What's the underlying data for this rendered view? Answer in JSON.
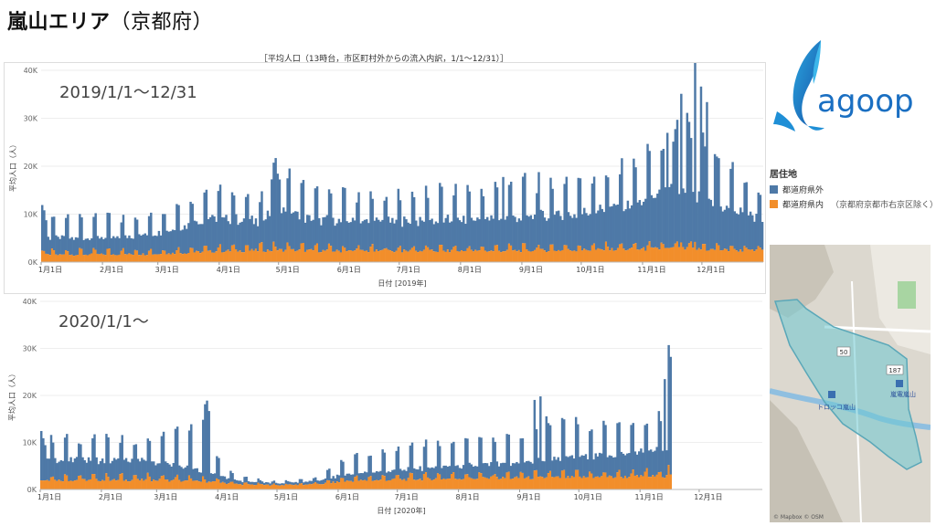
{
  "header": {
    "title": "嵐山エリア",
    "subtitle": "（京都府）"
  },
  "caption": "［平均人口（13時台，市区町村外からの流入内訳，1/1～12/31）］",
  "legend": {
    "title": "居住地",
    "items": [
      {
        "label": "都道府県外",
        "color": "#4e79a7"
      },
      {
        "label": "都道府県内",
        "color": "#f28e2b",
        "note": "（京都府京都市右京区除く）"
      }
    ]
  },
  "logo": {
    "text": "agoop",
    "color": "#1a6fc2"
  },
  "map": {
    "attribution": "© Mapbox © OSM",
    "labels": [
      "トロッコ嵐山",
      "嵐電嵐山"
    ],
    "road_numbers": [
      "50",
      "187"
    ]
  },
  "chart_data": [
    {
      "type": "bar",
      "stacked": true,
      "period_label": "2019/1/1～12/31",
      "xlabel": "日付 [2019年]",
      "ylabel": "平均人口（人）",
      "ylim": [
        0,
        40000
      ],
      "yticks": [
        "0K",
        "10K",
        "20K",
        "30K",
        "40K"
      ],
      "x_ticks": [
        "1月1日",
        "2月1日",
        "3月1日",
        "4月1日",
        "5月1日",
        "6月1日",
        "7月1日",
        "8月1日",
        "9月1日",
        "10月1日",
        "11月1日",
        "12月1日"
      ],
      "day_count": 365,
      "weekly_pattern": true,
      "grid": true,
      "series": [
        {
          "name": "都道府県外",
          "color": "#4e79a7",
          "baseline_keypoints": [
            [
              0,
              3500
            ],
            [
              40,
              3500
            ],
            [
              60,
              4500
            ],
            [
              85,
              7000
            ],
            [
              110,
              6000
            ],
            [
              120,
              9000
            ],
            [
              135,
              6500
            ],
            [
              170,
              6000
            ],
            [
              220,
              6500
            ],
            [
              270,
              7500
            ],
            [
              300,
              9500
            ],
            [
              320,
              12000
            ],
            [
              335,
              10000
            ],
            [
              364,
              6500
            ]
          ],
          "weekend_keypoints": [
            [
              0,
              7000
            ],
            [
              40,
              6500
            ],
            [
              60,
              8500
            ],
            [
              85,
              12000
            ],
            [
              110,
              10000
            ],
            [
              120,
              16000
            ],
            [
              135,
              11000
            ],
            [
              170,
              11000
            ],
            [
              220,
              12000
            ],
            [
              270,
              14000
            ],
            [
              300,
              16000
            ],
            [
              320,
              25000
            ],
            [
              335,
              20000
            ],
            [
              364,
              12000
            ]
          ],
          "peaks": [
            [
              0,
              9500
            ],
            [
              1,
              8500
            ],
            [
              2,
              7000
            ],
            [
              116,
              15000
            ],
            [
              117,
              16500
            ],
            [
              118,
              18500
            ],
            [
              119,
              16000
            ],
            [
              120,
              14500
            ],
            [
              233,
              15500
            ],
            [
              316,
              24000
            ],
            [
              319,
              22000
            ],
            [
              323,
              31000
            ],
            [
              326,
              28000
            ],
            [
              330,
              38500
            ],
            [
              333,
              34000
            ],
            [
              336,
              31000
            ],
            [
              340,
              20000
            ],
            [
              363,
              11000
            ]
          ]
        },
        {
          "name": "都道府県内",
          "color": "#f28e2b",
          "baseline_keypoints": [
            [
              0,
              1500
            ],
            [
              60,
              1700
            ],
            [
              90,
              2300
            ],
            [
              120,
              2500
            ],
            [
              150,
              2300
            ],
            [
              220,
              2300
            ],
            [
              270,
              2500
            ],
            [
              320,
              2800
            ],
            [
              364,
              2300
            ]
          ],
          "weekend_keypoints": [
            [
              0,
              2500
            ],
            [
              60,
              2700
            ],
            [
              90,
              3300
            ],
            [
              120,
              3800
            ],
            [
              150,
              3300
            ],
            [
              220,
              3300
            ],
            [
              270,
              3600
            ],
            [
              320,
              4000
            ],
            [
              364,
              3200
            ]
          ],
          "peaks": [
            [
              0,
              2400
            ],
            [
              1,
              2300
            ],
            [
              118,
              3200
            ],
            [
              323,
              4100
            ],
            [
              330,
              4200
            ]
          ]
        }
      ]
    },
    {
      "type": "bar",
      "stacked": true,
      "period_label": "2020/1/1～",
      "xlabel": "日付 [2020年]",
      "ylabel": "平均人口（人）",
      "ylim": [
        0,
        40000
      ],
      "yticks": [
        "0K",
        "10K",
        "20K",
        "30K",
        "40K"
      ],
      "x_ticks": [
        "1月1日",
        "2月1日",
        "3月1日",
        "4月1日",
        "5月1日",
        "6月1日",
        "7月1日",
        "8月1日",
        "9月1日",
        "10月1日",
        "11月1日",
        "12月1日"
      ],
      "day_count": 366,
      "data_days": 320,
      "weekly_pattern": true,
      "grid": true,
      "series": [
        {
          "name": "都道府県外",
          "color": "#4e79a7",
          "baseline_keypoints": [
            [
              0,
              4500
            ],
            [
              50,
              4000
            ],
            [
              65,
              3500
            ],
            [
              90,
              1500
            ],
            [
              100,
              700
            ],
            [
              120,
              400
            ],
            [
              140,
              700
            ],
            [
              155,
              1500
            ],
            [
              200,
              2500
            ],
            [
              240,
              3000
            ],
            [
              260,
              4000
            ],
            [
              300,
              5000
            ],
            [
              319,
              5500
            ]
          ],
          "weekend_keypoints": [
            [
              0,
              8000
            ],
            [
              50,
              7500
            ],
            [
              65,
              9000
            ],
            [
              85,
              11000
            ],
            [
              90,
              4000
            ],
            [
              100,
              1200
            ],
            [
              120,
              600
            ],
            [
              140,
              1200
            ],
            [
              155,
              4000
            ],
            [
              200,
              6500
            ],
            [
              240,
              7500
            ],
            [
              260,
              10000
            ],
            [
              300,
              10000
            ],
            [
              319,
              11000
            ]
          ],
          "peaks": [
            [
              0,
              10500
            ],
            [
              1,
              9000
            ],
            [
              2,
              7500
            ],
            [
              83,
              16000
            ],
            [
              84,
              17500
            ],
            [
              85,
              15000
            ],
            [
              250,
              15000
            ],
            [
              253,
              17000
            ],
            [
              256,
              13000
            ],
            [
              313,
              13000
            ],
            [
              316,
              21000
            ],
            [
              318,
              25500
            ],
            [
              319,
              25000
            ]
          ]
        },
        {
          "name": "都道府県内",
          "color": "#f28e2b",
          "baseline_keypoints": [
            [
              0,
              2000
            ],
            [
              60,
              2000
            ],
            [
              90,
              1500
            ],
            [
              100,
              1100
            ],
            [
              120,
              900
            ],
            [
              140,
              1100
            ],
            [
              155,
              1800
            ],
            [
              200,
              2300
            ],
            [
              260,
              2500
            ],
            [
              300,
              2700
            ],
            [
              319,
              2800
            ]
          ],
          "weekend_keypoints": [
            [
              0,
              3000
            ],
            [
              60,
              3100
            ],
            [
              90,
              2300
            ],
            [
              100,
              1400
            ],
            [
              120,
              1100
            ],
            [
              140,
              1400
            ],
            [
              155,
              2600
            ],
            [
              200,
              3300
            ],
            [
              260,
              3700
            ],
            [
              300,
              3800
            ],
            [
              319,
              4500
            ]
          ],
          "peaks": [
            [
              318,
              5200
            ]
          ]
        }
      ]
    }
  ]
}
